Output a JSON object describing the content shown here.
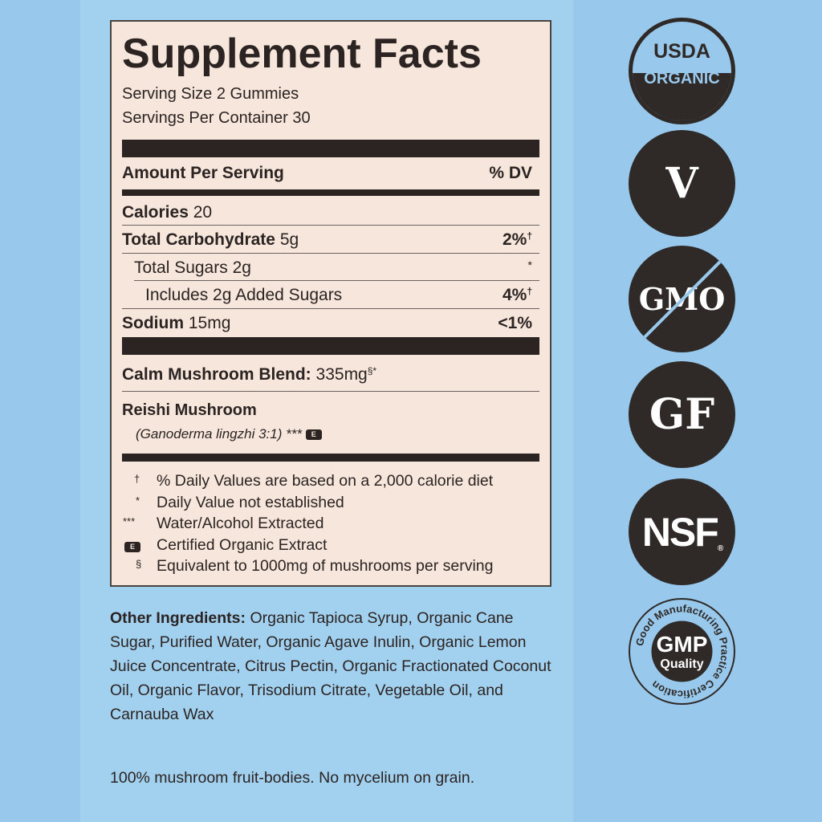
{
  "facts": {
    "title": "Supplement Facts",
    "serving_size": "Serving Size 2 Gummies",
    "servings_per_container": "Servings Per Container 30",
    "amount_header": "Amount Per Serving",
    "dv_header": "% DV",
    "rows": [
      {
        "name": "Calories",
        "amount": "20",
        "dv": ""
      },
      {
        "name": "Total Carbohydrate",
        "amount": "5g",
        "dv": "2%",
        "mark": "†"
      },
      {
        "name": "Total Sugars",
        "amount": "2g",
        "dv": "*"
      },
      {
        "name": "Includes 2g Added Sugars",
        "amount": "",
        "dv": "4%",
        "mark": "†"
      },
      {
        "name": "Sodium",
        "amount": "15mg",
        "dv": "<1%"
      }
    ],
    "blend_name": "Calm Mushroom Blend:",
    "blend_amount": "335mg",
    "blend_mark": "§*",
    "ingredient": "Reishi Mushroom",
    "ingredient_detail": "(Ganoderma lingzhi 3:1)",
    "ingredient_mark": "***",
    "e_badge": "E",
    "footnotes": [
      {
        "symbol": "†",
        "text": "% Daily Values are based on a 2,000 calorie diet"
      },
      {
        "symbol": "*",
        "text": "Daily Value not established"
      },
      {
        "symbol": "***",
        "text": "Water/Alcohol Extracted"
      },
      {
        "symbol": "E",
        "text": "Certified Organic Extract"
      },
      {
        "symbol": "§",
        "text": "Equivalent to 1000mg of mushrooms per serving"
      }
    ]
  },
  "other_ingredients": {
    "label": "Other Ingredients:",
    "text": "Organic Tapioca Syrup, Organic Cane Sugar, Purified Water, Organic Agave Inulin, Organic Lemon Juice Concentrate, Citrus Pectin, Organic Fractionated Coconut Oil, Organic Flavor, Trisodium Citrate, Vegetable Oil, and Carnauba Wax"
  },
  "bottom_note": "100% mushroom fruit-bodies. No mycelium on grain.",
  "badges": {
    "usda_top": "USDA",
    "usda_bottom": "ORGANIC",
    "vegan": "V",
    "gmo": "GMO",
    "gf": "GF",
    "nsf": "NSF",
    "gmp": "GMP",
    "gmp_sub": "Quality",
    "gmp_ring": "Good Manufacturing Practice Certification"
  },
  "colors": {
    "label_bg": "#f6e6dc",
    "ink": "#2b2422",
    "background": "#98c9ec"
  }
}
